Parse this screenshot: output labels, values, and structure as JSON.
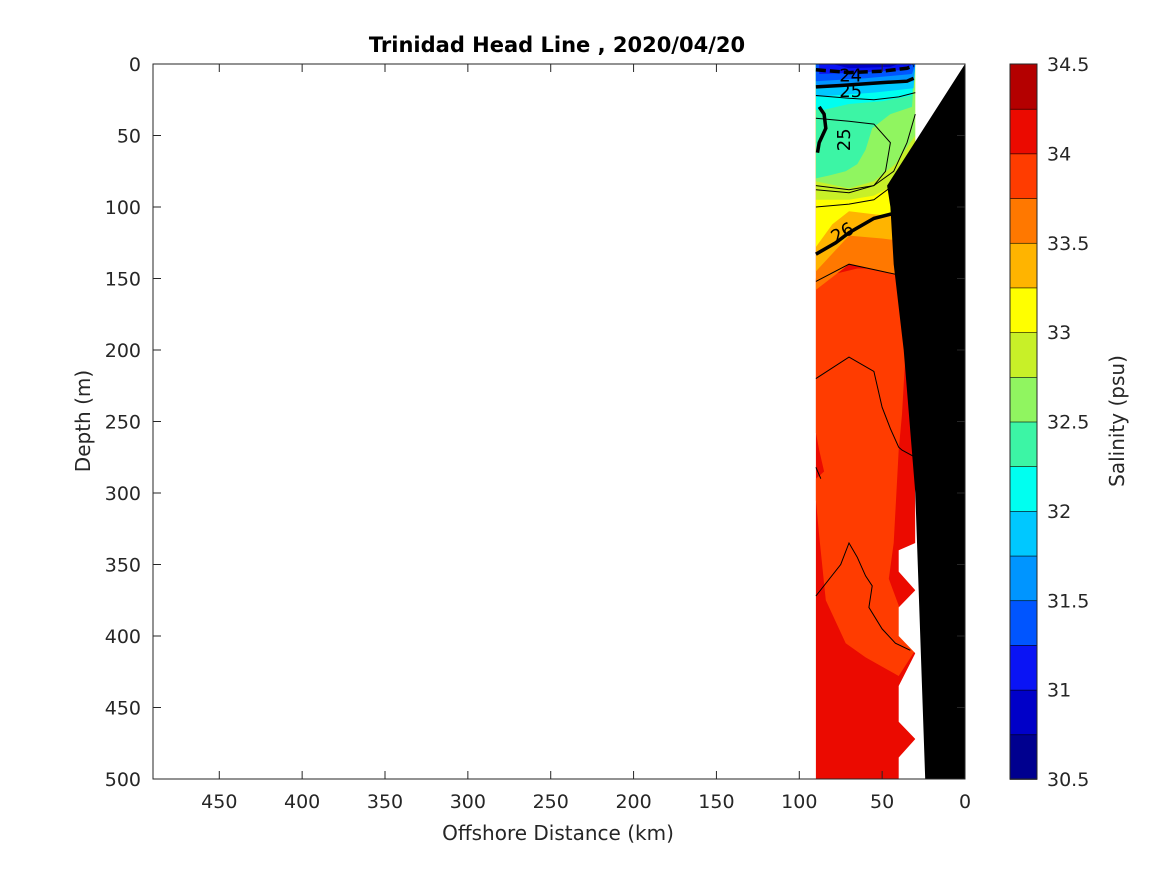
{
  "chart_data": {
    "type": "contour",
    "title": "Trinidad Head Line , 2020/04/20",
    "xlabel": "Offshore Distance (km)",
    "ylabel": "Depth (m)",
    "xlim": [
      490,
      0
    ],
    "ylim": [
      500,
      0
    ],
    "x_ticks": [
      450,
      400,
      350,
      300,
      250,
      200,
      150,
      100,
      50,
      0
    ],
    "y_ticks": [
      0,
      50,
      100,
      150,
      200,
      250,
      300,
      350,
      400,
      450,
      500
    ],
    "colorbar": {
      "label": "Salinity (psu)",
      "range": [
        30.5,
        34.5
      ],
      "tick_values": [
        34.5,
        34,
        33.5,
        33,
        32.5,
        32,
        31.5,
        31,
        30.5
      ],
      "levels": [
        30.5,
        30.75,
        31,
        31.25,
        31.5,
        31.75,
        32,
        32.25,
        32.5,
        32.75,
        33,
        33.25,
        33.5,
        33.75,
        34,
        34.25,
        34.5
      ],
      "colors": [
        "#00008f",
        "#0000c8",
        "#0a14f5",
        "#0055ff",
        "#0095ff",
        "#00c8ff",
        "#00fff0",
        "#3cf5a5",
        "#90f560",
        "#c8f028",
        "#ffff00",
        "#ffb400",
        "#ff7800",
        "#ff3c00",
        "#eb0a00",
        "#b40000"
      ]
    },
    "salinity_bands": [
      {
        "band": "30.5-31.5",
        "depth_m": [
          0,
          10
        ],
        "x_km": [
          90,
          30
        ]
      },
      {
        "band": "31.5-32.5",
        "depth_m": [
          5,
          30
        ],
        "x_km": [
          90,
          30
        ]
      },
      {
        "band": "32.5-33",
        "depth_m": [
          30,
          80
        ],
        "x_km": [
          90,
          55
        ]
      },
      {
        "band": "33-33.25",
        "depth_m": [
          40,
          110
        ],
        "x_km": [
          90,
          30
        ]
      },
      {
        "band": "33.25-33.75",
        "depth_m": [
          80,
          150
        ],
        "x_km": [
          90,
          30
        ]
      },
      {
        "band": "33.75-34",
        "depth_m": [
          140,
          160
        ],
        "x_km": [
          90,
          30
        ]
      },
      {
        "band": "34-34.25",
        "depth_m": [
          150,
          430
        ],
        "x_km": [
          90,
          30
        ]
      },
      {
        "band": "34.25-34.5",
        "depth_m": [
          200,
          500
        ],
        "x_km": [
          90,
          30
        ]
      }
    ],
    "density_contours": [
      {
        "label": "24",
        "depth_m": [
          3,
          8
        ]
      },
      {
        "label": "25",
        "depth_m": [
          15,
          18
        ]
      },
      {
        "label": "25",
        "depth_m": [
          30,
          65
        ]
      },
      {
        "label": "26",
        "depth_m": [
          105,
          133
        ]
      }
    ],
    "contour_labels": [
      "24",
      "25",
      "25",
      "26"
    ]
  }
}
